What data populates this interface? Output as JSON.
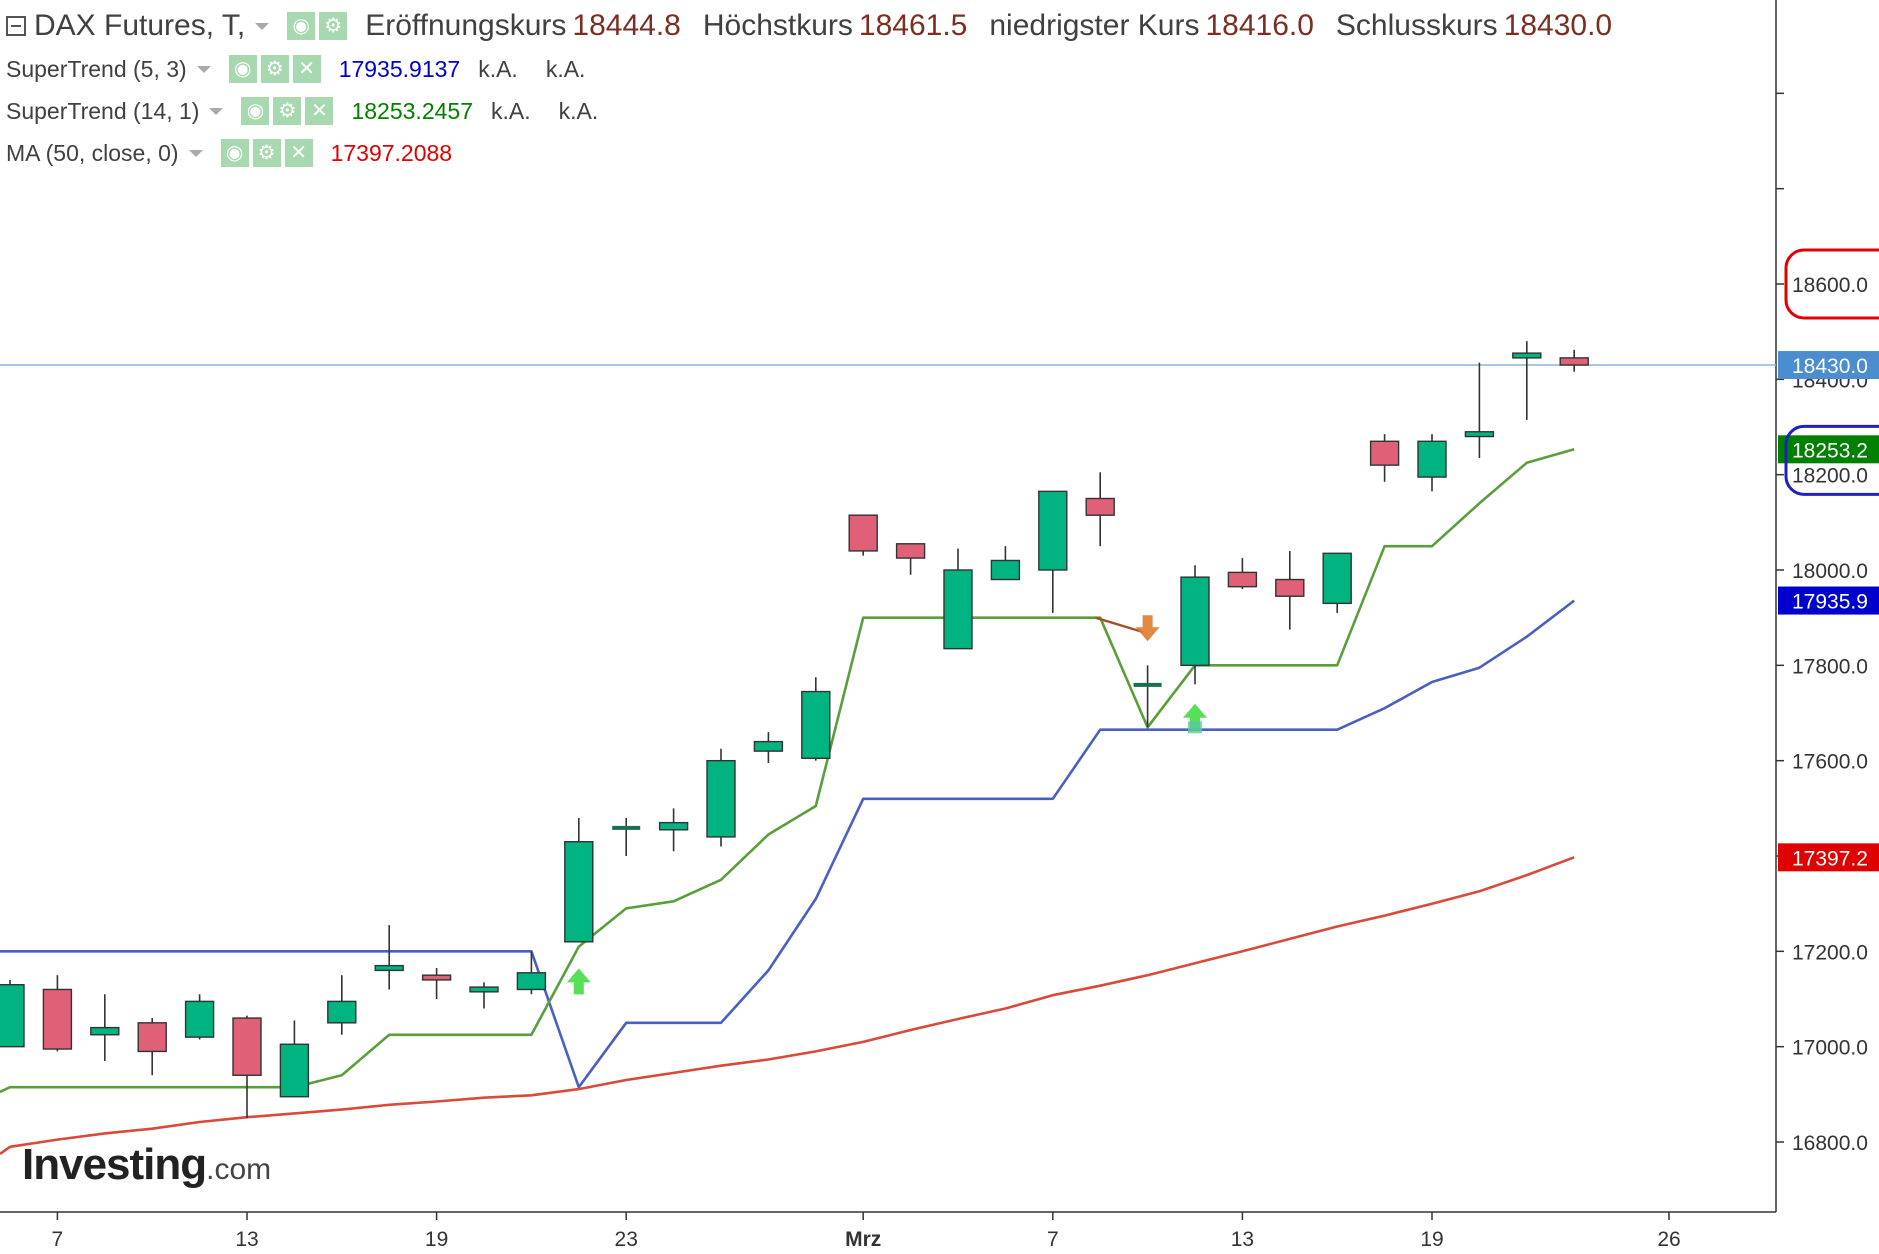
{
  "header": {
    "symbol": "DAX Futures, T,",
    "open_label": "Eröffnungskurs",
    "open_value": "18444.8",
    "high_label": "Höchstkurs",
    "high_value": "18461.5",
    "low_label": "niedrigster Kurs",
    "low_value": "18416.0",
    "close_label": "Schlusskurs",
    "close_value": "18430.0"
  },
  "indicators": [
    {
      "name": "SuperTrend (5, 3)",
      "value": "17935.9137",
      "extra1": "k.A.",
      "extra2": "k.A.",
      "color": "#0000cc"
    },
    {
      "name": "SuperTrend (14, 1)",
      "value": "18253.2457",
      "extra1": "k.A.",
      "extra2": "k.A.",
      "color": "#008000"
    },
    {
      "name": "MA (50, close, 0)",
      "value": "17397.2088",
      "color": "#e00000"
    }
  ],
  "logo": {
    "brand": "Investing",
    "suffix": ".com"
  },
  "colors": {
    "up": "#00b482",
    "down": "#e06078",
    "supertrend_5_3": "#4a5fc0",
    "supertrend_14_1": "#5a9e3c",
    "ma_50": "#d84a3a",
    "price_line": "#8ab4e0"
  },
  "chart_data": {
    "type": "candlestick",
    "y_ticks": [
      "16800.0",
      "17000.0",
      "17200.0",
      "17400.0",
      "17600.0",
      "17800.0",
      "18000.0",
      "18200.0",
      "18400.0",
      "18600.0"
    ],
    "x_ticks": [
      {
        "label": "7",
        "i": 1
      },
      {
        "label": "13",
        "i": 5
      },
      {
        "label": "19",
        "i": 9
      },
      {
        "label": "23",
        "i": 13
      },
      {
        "label": "Mrz",
        "i": 18
      },
      {
        "label": "7",
        "i": 22
      },
      {
        "label": "13",
        "i": 26
      },
      {
        "label": "19",
        "i": 30
      },
      {
        "label": "26",
        "i": 35
      }
    ],
    "ylim": [
      16660,
      18700
    ],
    "x_range": [
      0,
      37.5
    ],
    "candles": [
      {
        "i": 0,
        "o": 17000,
        "h": 17140,
        "l": 17000,
        "c": 17130
      },
      {
        "i": 1,
        "o": 17120,
        "h": 17150,
        "l": 16990,
        "c": 16995
      },
      {
        "i": 2,
        "o": 17025,
        "h": 17110,
        "l": 16970,
        "c": 17040
      },
      {
        "i": 3,
        "o": 17050,
        "h": 17060,
        "l": 16940,
        "c": 16990
      },
      {
        "i": 4,
        "o": 17020,
        "h": 17110,
        "l": 17015,
        "c": 17095
      },
      {
        "i": 5,
        "o": 17060,
        "h": 17065,
        "l": 16850,
        "c": 16940
      },
      {
        "i": 6,
        "o": 16895,
        "h": 17055,
        "l": 16895,
        "c": 17005
      },
      {
        "i": 7,
        "o": 17050,
        "h": 17150,
        "l": 17025,
        "c": 17095
      },
      {
        "i": 8,
        "o": 17160,
        "h": 17255,
        "l": 17120,
        "c": 17170
      },
      {
        "i": 9,
        "o": 17150,
        "h": 17165,
        "l": 17100,
        "c": 17140
      },
      {
        "i": 10,
        "o": 17115,
        "h": 17135,
        "l": 17080,
        "c": 17125
      },
      {
        "i": 11,
        "o": 17120,
        "h": 17200,
        "l": 17110,
        "c": 17155
      },
      {
        "i": 12,
        "o": 17220,
        "h": 17480,
        "l": 17220,
        "c": 17430
      },
      {
        "i": 13,
        "o": 17460,
        "h": 17480,
        "l": 17400,
        "c": 17460
      },
      {
        "i": 14,
        "o": 17455,
        "h": 17500,
        "l": 17410,
        "c": 17470
      },
      {
        "i": 15,
        "o": 17440,
        "h": 17625,
        "l": 17420,
        "c": 17600
      },
      {
        "i": 16,
        "o": 17620,
        "h": 17660,
        "l": 17595,
        "c": 17640
      },
      {
        "i": 17,
        "o": 17605,
        "h": 17775,
        "l": 17600,
        "c": 17745
      },
      {
        "i": 18,
        "o": 18115,
        "h": 18115,
        "l": 18030,
        "c": 18040
      },
      {
        "i": 19,
        "o": 18055,
        "h": 18055,
        "l": 17990,
        "c": 18025
      },
      {
        "i": 20,
        "o": 17835,
        "h": 18045,
        "l": 17835,
        "c": 18000
      },
      {
        "i": 21,
        "o": 17980,
        "h": 18050,
        "l": 17980,
        "c": 18020
      },
      {
        "i": 22,
        "o": 18000,
        "h": 18165,
        "l": 17910,
        "c": 18165
      },
      {
        "i": 23,
        "o": 18150,
        "h": 18205,
        "l": 18050,
        "c": 18115
      },
      {
        "i": 24,
        "o": 17760,
        "h": 17800,
        "l": 17670,
        "c": 17760
      },
      {
        "i": 25,
        "o": 17800,
        "h": 18010,
        "l": 17760,
        "c": 17985
      },
      {
        "i": 26,
        "o": 17995,
        "h": 18025,
        "l": 17960,
        "c": 17965
      },
      {
        "i": 27,
        "o": 17980,
        "h": 18040,
        "l": 17875,
        "c": 17945
      },
      {
        "i": 28,
        "o": 17930,
        "h": 18035,
        "l": 17910,
        "c": 18035
      },
      {
        "i": 29,
        "o": 18270,
        "h": 18285,
        "l": 18185,
        "c": 18220
      },
      {
        "i": 30,
        "o": 18195,
        "h": 18285,
        "l": 18165,
        "c": 18270
      },
      {
        "i": 31,
        "o": 18280,
        "h": 18435,
        "l": 18235,
        "c": 18290
      },
      {
        "i": 32,
        "o": 18445,
        "h": 18480,
        "l": 18315,
        "c": 18455
      },
      {
        "i": 33,
        "o": 18445,
        "h": 18462,
        "l": 18416,
        "c": 18430
      }
    ],
    "series": [
      {
        "name": "SuperTrend (5, 3)",
        "x": [
          -1,
          10,
          11,
          12,
          13,
          14,
          15,
          16,
          17,
          18,
          19,
          20,
          21,
          22,
          23,
          24,
          25,
          26,
          27,
          28,
          29,
          30,
          31,
          32,
          33
        ],
        "values": [
          17200,
          17200,
          17200,
          16915,
          17050,
          17050,
          17050,
          17160,
          17310,
          17520,
          17520,
          17520,
          17520,
          17520,
          17665,
          17665,
          17665,
          17665,
          17665,
          17665,
          17710,
          17765,
          17795,
          17860,
          17935.9
        ]
      },
      {
        "name": "SuperTrend (14, 1)",
        "x": [
          -1,
          0,
          1,
          2,
          3,
          4,
          5,
          6,
          7,
          8,
          9,
          10,
          11,
          12,
          13,
          14,
          15,
          16,
          17,
          18,
          19,
          20,
          21,
          22,
          23,
          24,
          25,
          26,
          27,
          28,
          29,
          30,
          31,
          32,
          33
        ],
        "values": [
          16905,
          16915,
          16915,
          16915,
          16915,
          16915,
          16915,
          16915,
          16940,
          17025,
          17025,
          17025,
          17025,
          17210,
          17290,
          17305,
          17350,
          17445,
          17505,
          17900,
          17900,
          17900,
          17900,
          17900,
          17900,
          17670,
          17800,
          17800,
          17800,
          17800,
          18050,
          18050,
          18140,
          18225,
          18253.2
        ]
      },
      {
        "name": "MA (50, close, 0)",
        "x": [
          -1,
          0,
          1,
          2,
          3,
          4,
          5,
          6,
          7,
          8,
          9,
          10,
          11,
          12,
          13,
          14,
          15,
          16,
          17,
          18,
          19,
          20,
          21,
          22,
          23,
          24,
          25,
          26,
          27,
          28,
          29,
          30,
          31,
          32,
          33
        ],
        "values": [
          16775,
          16790,
          16805,
          16818,
          16828,
          16842,
          16852,
          16860,
          16868,
          16878,
          16885,
          16893,
          16898,
          16911,
          16930,
          16945,
          16960,
          16973,
          16990,
          17010,
          17035,
          17058,
          17080,
          17108,
          17128,
          17150,
          17175,
          17200,
          17226,
          17252,
          17275,
          17300,
          17326,
          17360,
          17397.2
        ]
      }
    ],
    "signals": [
      {
        "type": "buy",
        "i": 12,
        "y": 17135
      },
      {
        "type": "sell",
        "i": 24,
        "y": 17880
      },
      {
        "type": "buy",
        "i": 25,
        "y": 17690
      },
      {
        "type": "buy-marker",
        "i": 25,
        "y": 17670
      }
    ],
    "value_badges": [
      {
        "text": "18430.0",
        "value": 18430.0,
        "bg": "#4a8ed0",
        "fg": "#ffffff"
      },
      {
        "text": "18253.2",
        "value": 18253.2,
        "bg": "#008000",
        "fg": "#ffffff"
      },
      {
        "text": "17935.9",
        "value": 17935.9,
        "bg": "#0000cc",
        "fg": "#ffffff"
      },
      {
        "text": "17397.2",
        "value": 17397.2,
        "bg": "#e00000",
        "fg": "#ffffff"
      }
    ],
    "highlights": [
      {
        "color": "#e00000",
        "around_value": 18600
      },
      {
        "color": "#2020c0",
        "around_value": 18230
      }
    ]
  }
}
